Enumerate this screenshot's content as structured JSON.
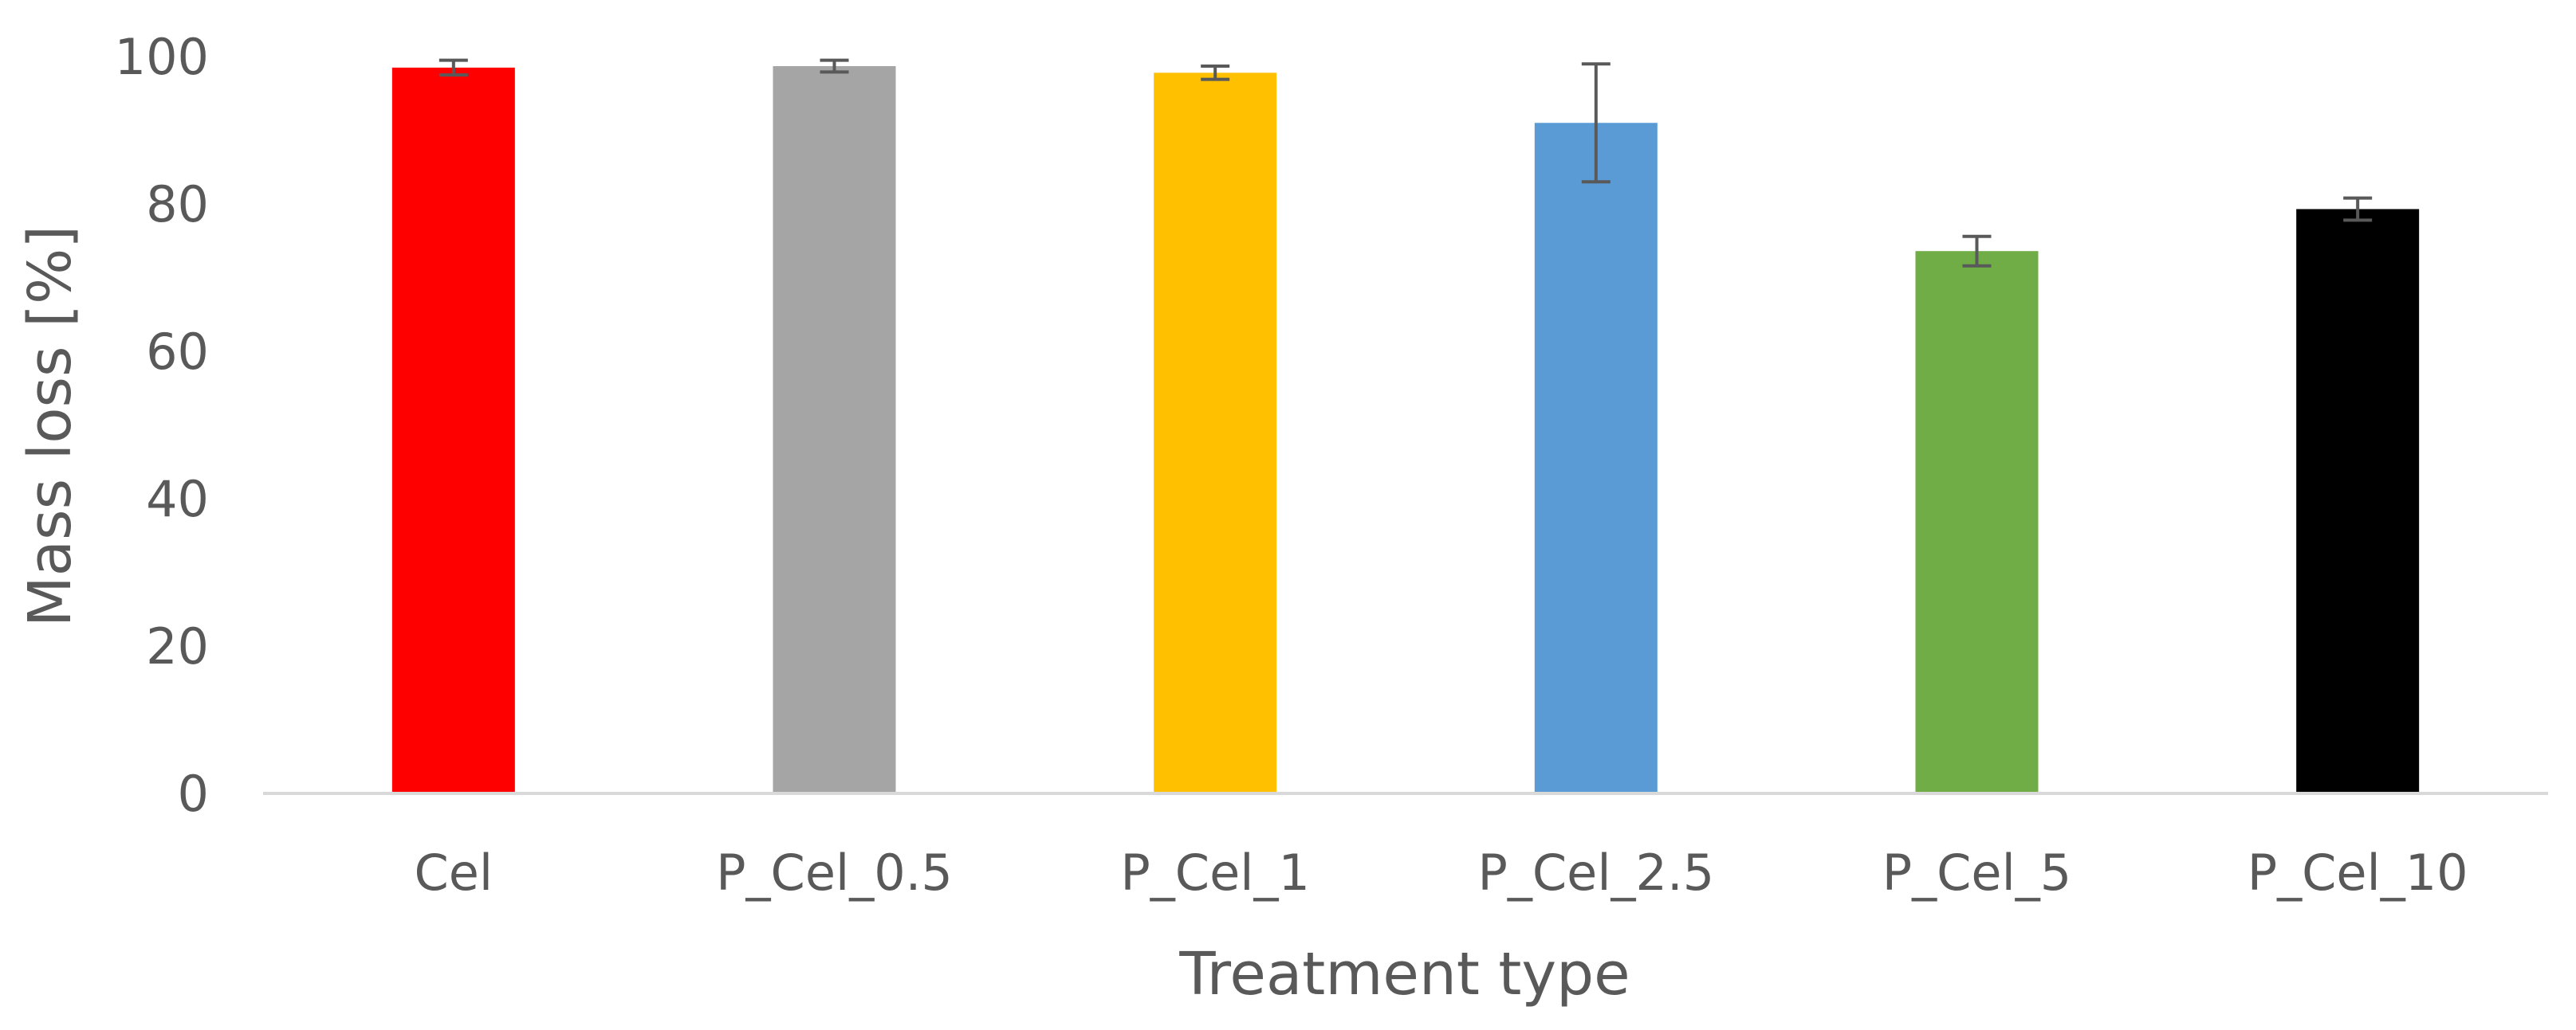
{
  "chart_data": {
    "type": "bar",
    "title": "",
    "xlabel": "Treatment type",
    "ylabel": "Mass loss [%]",
    "ylim": [
      0,
      100
    ],
    "yticks": [
      0,
      20,
      40,
      60,
      80,
      100
    ],
    "grid": false,
    "legend": "none",
    "categories": [
      "Cel",
      "P_Cel_0.5",
      "P_Cel_1",
      "P_Cel_2.5",
      "P_Cel_5",
      "P_Cel_10"
    ],
    "values": [
      98.5,
      98.7,
      97.8,
      91.0,
      73.6,
      79.3
    ],
    "errors": [
      1.0,
      0.8,
      0.9,
      8.0,
      2.0,
      1.5
    ],
    "colors": [
      "#ff0000",
      "#a5a5a5",
      "#ffc000",
      "#5b9bd5",
      "#70ad47",
      "#000000"
    ],
    "axis_color": "#d9d9d9",
    "error_bar_color": "#595959"
  }
}
